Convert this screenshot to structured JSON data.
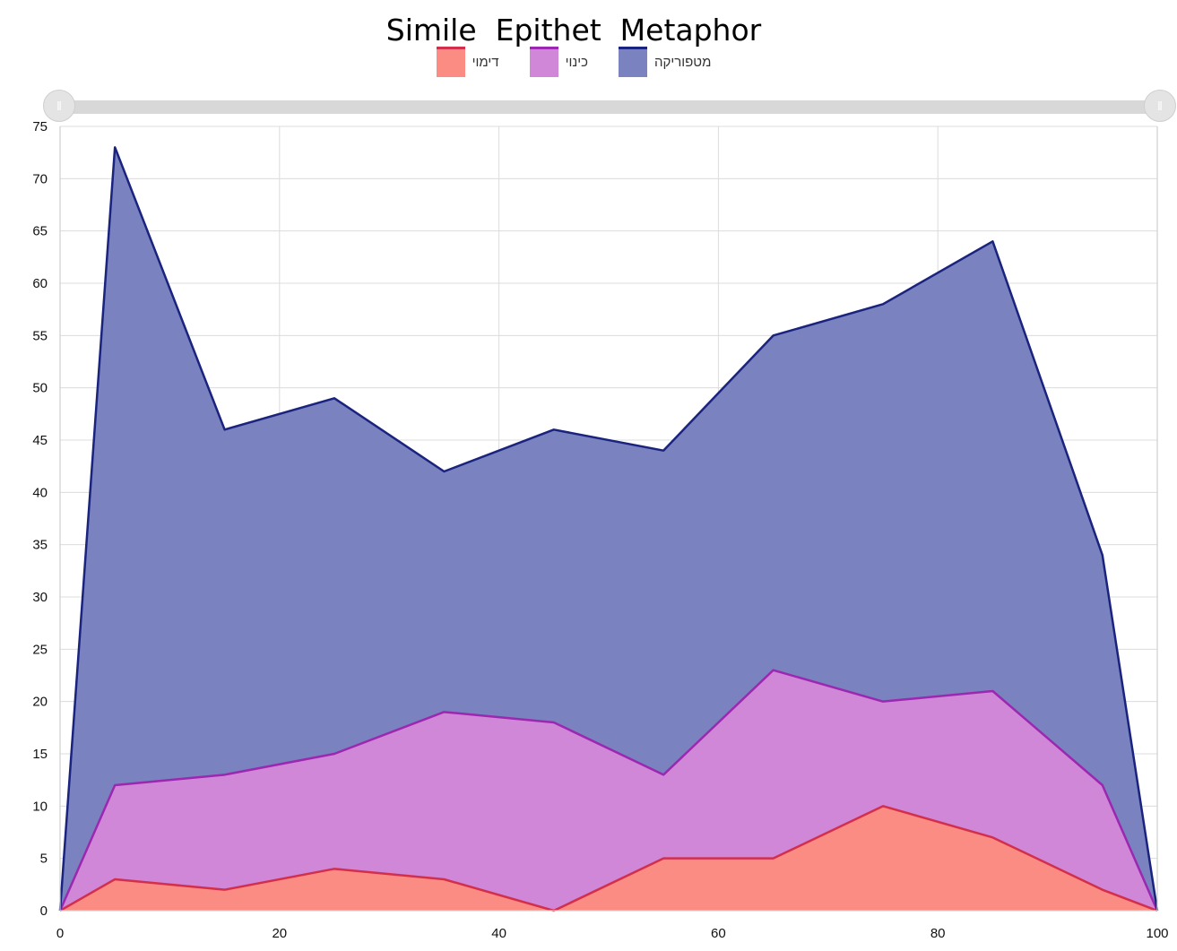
{
  "title": "Simile  Epithet  Metaphor",
  "legend": [
    {
      "label": "דימוי",
      "fill": "#fa8c84",
      "stroke": "#d32f4b"
    },
    {
      "label": "כינוי",
      "fill": "#d087d8",
      "stroke": "#9c27b0"
    },
    {
      "label": "מטפוריקה",
      "fill": "#7a82c0",
      "stroke": "#1a237e"
    }
  ],
  "slider": {
    "left_icon": "ǁ",
    "right_icon": "ǁ"
  },
  "chart_data": {
    "type": "area",
    "stacked": true,
    "title": "Simile  Epithet  Metaphor",
    "x": [
      0,
      5,
      15,
      25,
      35,
      45,
      55,
      65,
      75,
      85,
      95,
      100
    ],
    "series": [
      {
        "name": "דימוי",
        "color": "#fa8c84",
        "line": "#d32f4b",
        "values": [
          0,
          3,
          2,
          4,
          3,
          0,
          5,
          5,
          10,
          7,
          2,
          0
        ]
      },
      {
        "name": "כינוי",
        "color": "#d087d8",
        "line": "#9c27b0",
        "values": [
          0,
          9,
          11,
          11,
          16,
          18,
          8,
          18,
          10,
          14,
          10,
          0
        ]
      },
      {
        "name": "מטפוריקה",
        "color": "#7a82c0",
        "line": "#1a237e",
        "values": [
          0,
          61,
          33,
          34,
          23,
          28,
          31,
          32,
          38,
          43,
          22,
          0
        ]
      }
    ],
    "xlim": [
      0,
      100
    ],
    "ylim": [
      0,
      75
    ],
    "xticks": [
      0,
      20,
      40,
      60,
      80,
      100
    ],
    "yticks": [
      0,
      5,
      10,
      15,
      20,
      25,
      30,
      35,
      40,
      45,
      50,
      55,
      60,
      65,
      70,
      75
    ],
    "grid": true
  }
}
